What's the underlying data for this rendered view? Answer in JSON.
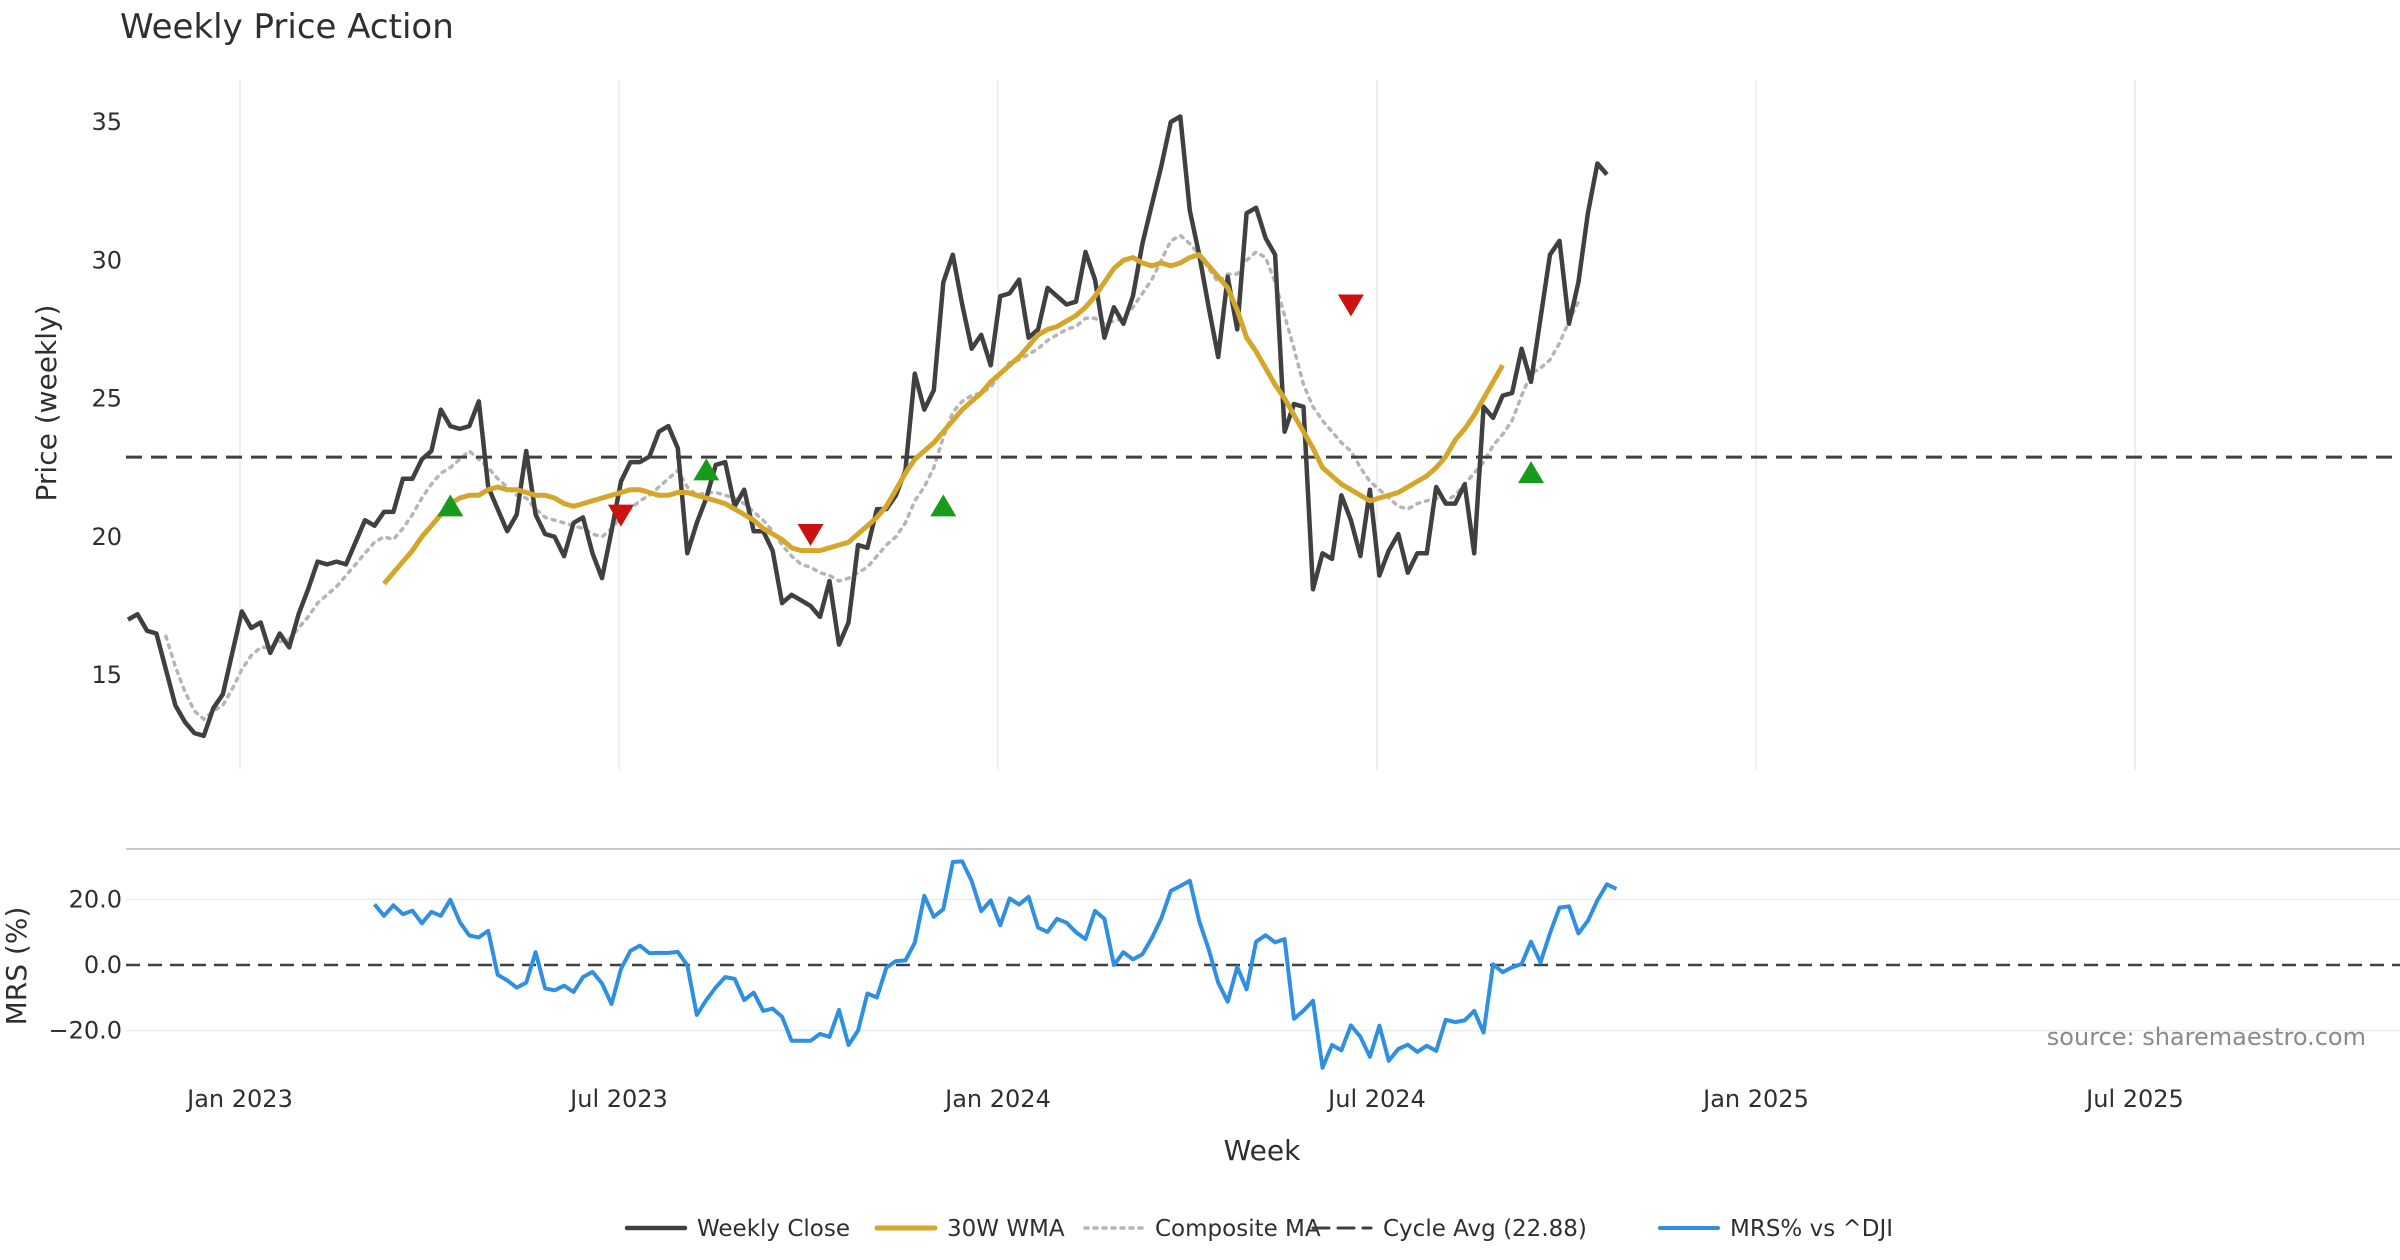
{
  "chart_data": {
    "type": "line",
    "title": "Weekly Price Action",
    "x_label": "Week",
    "x_ticks": [
      "Jan 2023",
      "Jul 2023",
      "Jan 2024",
      "Jul 2024",
      "Jan 2025",
      "Jul 2025"
    ],
    "price_panel": {
      "ylabel": "Price (weekly)",
      "ylim": [
        11.5,
        36.5
      ],
      "y_ticks": [
        15,
        20,
        25,
        30,
        35
      ],
      "cycle_avg": 22.88,
      "series": [
        {
          "name": "Weekly Close",
          "color": "#404040",
          "style": "solid",
          "values": [
            17,
            17.2,
            16.6,
            16.5,
            15.2,
            13.9,
            13.3,
            12.9,
            12.8,
            13.8,
            14.3,
            15.8,
            17.3,
            16.7,
            16.9,
            15.8,
            16.5,
            16,
            17.2,
            18.1,
            19.1,
            19,
            19.1,
            19,
            19.8,
            20.6,
            20.4,
            20.9,
            20.9,
            22.1,
            22.1,
            22.8,
            23.1,
            24.6,
            24,
            23.9,
            24,
            24.9,
            21.8,
            21,
            20.2,
            20.8,
            23.1,
            20.8,
            20.1,
            20,
            19.3,
            20.5,
            20.7,
            19.4,
            18.5,
            20.2,
            22,
            22.7,
            22.7,
            22.9,
            23.8,
            24,
            23.2,
            19.4,
            20.5,
            21.4,
            22.6,
            22.7,
            21.1,
            21.7,
            20.2,
            20.2,
            19.5,
            17.6,
            17.9,
            17.7,
            17.5,
            17.1,
            18.4,
            16.1,
            16.9,
            19.7,
            19.6,
            21,
            21,
            21.5,
            22.4,
            25.9,
            24.6,
            25.3,
            29.2,
            30.2,
            28.4,
            26.8,
            27.3,
            26.2,
            28.7,
            28.8,
            29.3,
            27.2,
            27.5,
            29,
            28.7,
            28.4,
            28.5,
            30.3,
            29.3,
            27.2,
            28.3,
            27.7,
            28.7,
            30.6,
            32,
            33.4,
            35,
            35.2,
            31.8,
            30.2,
            28.3,
            26.5,
            29.4,
            27.5,
            31.7,
            31.9,
            30.8,
            30.2,
            23.8,
            24.8,
            24.7,
            18.1,
            19.4,
            19.2,
            21.5,
            20.6,
            19.3,
            21.7,
            18.6,
            19.5,
            20.1,
            18.7,
            19.4,
            19.4,
            21.8,
            21.2,
            21.2,
            21.9,
            19.4,
            24.7,
            24.3,
            25.1,
            25.2,
            26.8,
            25.6,
            27.9,
            30.2,
            30.7,
            27.7,
            29.2,
            31.7,
            33.5,
            33.1
          ]
        },
        {
          "name": "30W WMA",
          "color": "#d4a72c",
          "style": "solid",
          "values": [
            null,
            null,
            null,
            null,
            null,
            null,
            null,
            null,
            null,
            null,
            null,
            null,
            null,
            null,
            null,
            null,
            null,
            null,
            null,
            null,
            null,
            null,
            null,
            null,
            null,
            null,
            null,
            18.3,
            18.7,
            19.1,
            19.5,
            20,
            20.4,
            20.8,
            21.2,
            21.4,
            21.5,
            21.5,
            21.7,
            21.8,
            21.7,
            21.7,
            21.6,
            21.5,
            21.5,
            21.4,
            21.2,
            21.1,
            21.2,
            21.3,
            21.4,
            21.5,
            21.6,
            21.7,
            21.7,
            21.6,
            21.5,
            21.5,
            21.6,
            21.6,
            21.5,
            21.4,
            21.3,
            21.2,
            21,
            20.8,
            20.6,
            20.3,
            20.1,
            19.9,
            19.6,
            19.5,
            19.5,
            19.5,
            19.6,
            19.7,
            19.8,
            20.1,
            20.4,
            20.7,
            21.1,
            21.7,
            22.3,
            22.8,
            23.1,
            23.4,
            23.8,
            24.2,
            24.6,
            24.9,
            25.2,
            25.6,
            25.9,
            26.2,
            26.5,
            26.9,
            27.3,
            27.5,
            27.6,
            27.8,
            28,
            28.3,
            28.7,
            29.2,
            29.7,
            30,
            30.1,
            29.9,
            29.8,
            29.9,
            29.8,
            29.9,
            30.1,
            30.2,
            29.8,
            29.4,
            29,
            28.2,
            27.2,
            26.7,
            26.1,
            25.5,
            25,
            24.4,
            23.8,
            23.2,
            22.5,
            22.2,
            21.9,
            21.7,
            21.5,
            21.3,
            21.4,
            21.5,
            21.6,
            21.8,
            22,
            22.2,
            22.5,
            22.9,
            23.5,
            23.9,
            24.4,
            25,
            25.6,
            26.2
          ]
        },
        {
          "name": "Composite MA",
          "color": "#b5b5b5",
          "style": "dotted",
          "values": [
            null,
            null,
            null,
            null,
            16.4,
            15.3,
            14.4,
            13.7,
            13.4,
            13.7,
            13.9,
            14.5,
            15.2,
            15.7,
            16,
            16,
            16.2,
            16.3,
            16.7,
            17.1,
            17.6,
            17.9,
            18.2,
            18.6,
            19,
            19.4,
            19.8,
            20,
            19.9,
            20.3,
            20.8,
            21.4,
            21.9,
            22.3,
            22.5,
            22.8,
            23.1,
            22.8,
            22.5,
            22.1,
            21.8,
            21.5,
            21.4,
            21,
            20.7,
            20.6,
            20.5,
            20.4,
            20.3,
            20.1,
            20,
            20.3,
            20.7,
            21,
            21.3,
            21.5,
            21.8,
            22.1,
            22.4,
            21.8,
            21.5,
            21.6,
            21.6,
            21.5,
            21.4,
            21.2,
            20.9,
            20.6,
            20.2,
            19.7,
            19.3,
            19,
            18.9,
            18.7,
            18.6,
            18.4,
            18.5,
            18.7,
            18.9,
            19.3,
            19.7,
            20,
            20.5,
            21.3,
            21.8,
            22.5,
            23.6,
            24.5,
            24.9,
            25.1,
            25.2,
            25.4,
            25.9,
            26.3,
            26.4,
            26.6,
            26.8,
            27.1,
            27.3,
            27.5,
            27.6,
            27.9,
            27.9,
            27.7,
            27.8,
            27.9,
            28.3,
            28.8,
            29.3,
            30,
            30.7,
            30.9,
            30.6,
            30.2,
            29.7,
            29.2,
            29.5,
            29.5,
            30,
            30.3,
            30.1,
            29.2,
            28,
            26.8,
            25.5,
            24.7,
            24.2,
            23.8,
            23.4,
            23.1,
            22.5,
            22,
            21.7,
            21.4,
            21.1,
            21,
            21.2,
            21.3,
            21.4,
            21.3,
            21.5,
            21.9,
            22.3,
            22.7,
            23.3,
            23.7,
            24.2,
            25.1,
            25.9,
            26.1,
            26.4,
            27,
            27.8,
            28.5
          ]
        },
        {
          "name": "Cycle Avg (22.88)",
          "color": "#404040",
          "style": "dashed",
          "values": [
            22.88
          ]
        }
      ],
      "markers": [
        {
          "type": "buy",
          "week": 34,
          "value": 21.1
        },
        {
          "type": "sell",
          "week": 52,
          "value": 20.8
        },
        {
          "type": "buy",
          "week": 61,
          "value": 22.4
        },
        {
          "type": "sell",
          "week": 72,
          "value": 20.1
        },
        {
          "type": "buy",
          "week": 86,
          "value": 21.1
        },
        {
          "type": "sell",
          "week": 129,
          "value": 28.4
        },
        {
          "type": "buy",
          "week": 148,
          "value": 22.3
        }
      ]
    },
    "mrs_panel": {
      "ylabel": "MRS (%)",
      "ylim": [
        -32,
        34
      ],
      "y_ticks": [
        "20.0",
        "0.0",
        "−20.0"
      ],
      "y_tick_values": [
        20,
        0,
        -20
      ],
      "series": [
        {
          "name": "MRS% vs ^DJI",
          "color": "#2f8fe0",
          "start_week": 26,
          "values": [
            18.5,
            15,
            18.2,
            15.5,
            16.6,
            12.7,
            16.2,
            15,
            19.9,
            13.1,
            9,
            8.4,
            10.4,
            -3,
            -4.7,
            -6.9,
            -5.4,
            3.9,
            -7.1,
            -7.7,
            -6.3,
            -8.2,
            -3.7,
            -2.1,
            -5.6,
            -11.9,
            -1.2,
            4.3,
            5.9,
            3.6,
            3.7,
            3.7,
            4,
            -0.1,
            -15.2,
            -10.7,
            -6.8,
            -3.7,
            -4.2,
            -10.7,
            -8.4,
            -14,
            -13.3,
            -15.8,
            -23.1,
            -23.1,
            -23.1,
            -21,
            -21.9,
            -13.7,
            -24.4,
            -20,
            -8.7,
            -9.9,
            -0.8,
            1.2,
            1.4,
            6.8,
            21.1,
            14.7,
            17,
            31.4,
            31.6,
            25.6,
            16.4,
            19.7,
            12.1,
            20.3,
            18.4,
            20.8,
            11.4,
            10.1,
            14.1,
            12.9,
            10,
            7.9,
            16.5,
            14.1,
            0,
            3.9,
            1.7,
            3.3,
            8.2,
            14.2,
            22.6,
            24.1,
            25.7,
            13.4,
            4.8,
            -5.4,
            -11.2,
            -0.6,
            -7.4,
            7.1,
            9.1,
            6.9,
            7.9,
            -16.4,
            -13.9,
            -10.9,
            -31.3,
            -24.4,
            -26,
            -18.4,
            -21.9,
            -28,
            -18.5,
            -29.2,
            -25.6,
            -24.3,
            -26.5,
            -24.6,
            -26.2,
            -16.7,
            -17.4,
            -16.9,
            -14,
            -20.6,
            0.2,
            -2.2,
            -0.7,
            0.3,
            7.1,
            0.8,
            9.7,
            17.5,
            17.9,
            9.6,
            13.5,
            19.7,
            24.6,
            23.2
          ]
        }
      ]
    },
    "legend": [
      "Weekly Close",
      "30W WMA",
      "Composite MA",
      "Cycle Avg (22.88)",
      "MRS% vs ^DJI"
    ],
    "source": "source: sharemaestro.com"
  },
  "colors": {
    "close": "#404040",
    "wma": "#d4a72c",
    "composite": "#b5b5b5",
    "mrs": "#2f8fe0",
    "buy": "#1a9a1a",
    "sell": "#cc1111"
  }
}
